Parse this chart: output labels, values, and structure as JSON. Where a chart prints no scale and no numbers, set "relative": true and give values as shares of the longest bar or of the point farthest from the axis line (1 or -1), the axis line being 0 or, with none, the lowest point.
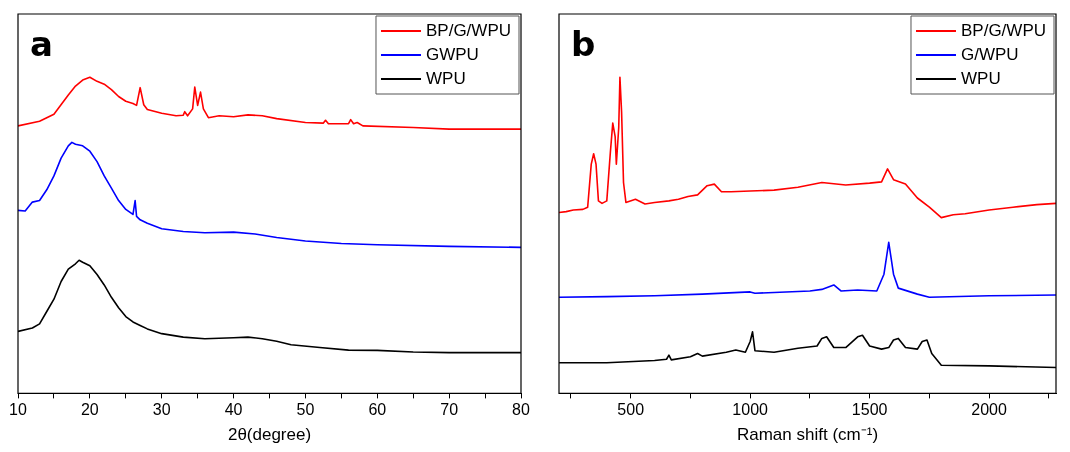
{
  "chart_data": [
    {
      "type": "line",
      "title": "a",
      "xlabel": "2θ(degree)",
      "relative": true,
      "legend": "top right",
      "grid": false,
      "marker": "none",
      "xlim": [
        10,
        80
      ],
      "xticks": [
        10,
        {
          "value": 15,
          "label": null
        },
        20,
        {
          "value": 25,
          "label": null
        },
        30,
        {
          "value": 35,
          "label": null
        },
        40,
        {
          "value": 45,
          "label": null
        },
        50,
        {
          "value": 55,
          "label": null
        },
        60,
        {
          "value": 65,
          "label": null
        },
        70,
        {
          "value": 75,
          "label": null
        },
        80
      ],
      "series": [
        {
          "name": "BP/G/WPU",
          "color": "#ff0000",
          "x": [
            10,
            13,
            15,
            17,
            18,
            19,
            20,
            21,
            22,
            23,
            24,
            25,
            26,
            26.5,
            27,
            27.5,
            28,
            30,
            32,
            33,
            33.2,
            33.6,
            34.3,
            34.6,
            35,
            35.4,
            35.8,
            36.5,
            38,
            40,
            42,
            44,
            46,
            50,
            52.5,
            52.8,
            53.2,
            56,
            56.3,
            56.7,
            57.2,
            58,
            65,
            70,
            80
          ],
          "values": [
            0.846,
            0.861,
            0.883,
            0.944,
            0.972,
            0.991,
            1,
            0.987,
            0.978,
            0.961,
            0.939,
            0.924,
            0.917,
            0.911,
            0.967,
            0.913,
            0.898,
            0.886,
            0.878,
            0.88,
            0.891,
            0.878,
            0.9,
            0.969,
            0.911,
            0.953,
            0.9,
            0.872,
            0.878,
            0.875,
            0.881,
            0.878,
            0.869,
            0.857,
            0.855,
            0.864,
            0.853,
            0.853,
            0.866,
            0.853,
            0.857,
            0.846,
            0.841,
            0.836,
            0.836
          ]
        },
        {
          "name": "GWPU",
          "color": "#0000ff",
          "x": [
            10,
            11,
            12,
            13,
            14,
            15,
            16,
            17,
            17.5,
            18,
            19,
            20,
            21,
            22,
            23,
            24,
            25,
            26,
            26.3,
            26.5,
            27,
            28,
            30,
            33,
            36,
            40,
            43,
            46,
            50,
            55,
            60,
            70,
            80
          ],
          "values": [
            0.579,
            0.577,
            0.605,
            0.61,
            0.644,
            0.688,
            0.744,
            0.783,
            0.794,
            0.788,
            0.783,
            0.766,
            0.733,
            0.688,
            0.649,
            0.61,
            0.582,
            0.566,
            0.61,
            0.56,
            0.549,
            0.538,
            0.521,
            0.512,
            0.508,
            0.51,
            0.504,
            0.493,
            0.482,
            0.474,
            0.47,
            0.465,
            0.462
          ]
        },
        {
          "name": "WPU",
          "color": "#000000",
          "x": [
            10,
            12,
            13,
            14,
            15,
            16,
            17,
            18,
            18.5,
            19,
            20,
            21,
            22,
            23,
            24,
            25,
            26,
            27,
            28,
            30,
            33,
            36,
            40,
            42,
            44,
            46,
            48,
            52,
            56,
            60,
            65,
            70,
            80
          ],
          "values": [
            0.196,
            0.207,
            0.22,
            0.259,
            0.298,
            0.354,
            0.393,
            0.41,
            0.421,
            0.415,
            0.404,
            0.376,
            0.343,
            0.304,
            0.271,
            0.243,
            0.226,
            0.215,
            0.204,
            0.189,
            0.178,
            0.173,
            0.176,
            0.178,
            0.173,
            0.165,
            0.154,
            0.145,
            0.137,
            0.136,
            0.131,
            0.129,
            0.129
          ]
        }
      ]
    },
    {
      "type": "line",
      "title": "b",
      "xlabel": "Raman shift (cm⁻¹)",
      "relative": true,
      "legend": "top right",
      "grid": false,
      "marker": "none",
      "xlim": [
        200,
        2280
      ],
      "xticks": [
        {
          "value": 250,
          "label": null
        },
        500,
        {
          "value": 750,
          "label": null
        },
        1000,
        {
          "value": 1250,
          "label": null
        },
        1500,
        {
          "value": 1750,
          "label": null
        },
        2000,
        {
          "value": 2250,
          "label": null
        }
      ],
      "series": [
        {
          "name": "BP/G/WPU",
          "color": "#ff0000",
          "x": [
            200,
            230,
            260,
            300,
            320,
            335,
            345,
            355,
            365,
            380,
            400,
            415,
            425,
            435,
            440,
            450,
            455,
            462,
            470,
            480,
            520,
            560,
            600,
            660,
            700,
            740,
            780,
            820,
            850,
            880,
            920,
            1000,
            1100,
            1200,
            1300,
            1400,
            1500,
            1550,
            1575,
            1600,
            1650,
            1700,
            1750,
            1800,
            1850,
            1900,
            2000,
            2100,
            2200,
            2280
          ],
          "values": [
            0.572,
            0.575,
            0.58,
            0.582,
            0.589,
            0.725,
            0.758,
            0.725,
            0.609,
            0.601,
            0.609,
            0.763,
            0.855,
            0.812,
            0.725,
            0.841,
            1,
            0.889,
            0.667,
            0.604,
            0.614,
            0.599,
            0.604,
            0.609,
            0.614,
            0.623,
            0.628,
            0.657,
            0.662,
            0.638,
            0.638,
            0.64,
            0.643,
            0.652,
            0.667,
            0.659,
            0.665,
            0.669,
            0.71,
            0.676,
            0.662,
            0.618,
            0.589,
            0.556,
            0.565,
            0.568,
            0.58,
            0.589,
            0.597,
            0.601
          ]
        },
        {
          "name": "G/WPU",
          "color": "#0000ff",
          "x": [
            200,
            400,
            600,
            800,
            1000,
            1020,
            1100,
            1250,
            1300,
            1350,
            1380,
            1450,
            1530,
            1560,
            1580,
            1600,
            1620,
            1700,
            1750,
            2000,
            2280
          ],
          "values": [
            0.304,
            0.306,
            0.309,
            0.314,
            0.321,
            0.317,
            0.319,
            0.324,
            0.329,
            0.343,
            0.324,
            0.327,
            0.324,
            0.377,
            0.478,
            0.377,
            0.333,
            0.314,
            0.304,
            0.309,
            0.311
          ]
        },
        {
          "name": "WPU",
          "color": "#000000",
          "x": [
            200,
            400,
            600,
            650,
            660,
            670,
            750,
            780,
            800,
            900,
            940,
            980,
            1000,
            1010,
            1020,
            1100,
            1200,
            1280,
            1300,
            1320,
            1350,
            1400,
            1450,
            1470,
            1500,
            1550,
            1580,
            1600,
            1620,
            1650,
            1700,
            1720,
            1740,
            1760,
            1800,
            2000,
            2280
          ],
          "values": [
            0.097,
            0.097,
            0.104,
            0.108,
            0.121,
            0.106,
            0.116,
            0.126,
            0.118,
            0.13,
            0.137,
            0.13,
            0.164,
            0.195,
            0.135,
            0.13,
            0.143,
            0.15,
            0.174,
            0.179,
            0.145,
            0.145,
            0.179,
            0.184,
            0.15,
            0.14,
            0.145,
            0.169,
            0.174,
            0.145,
            0.14,
            0.164,
            0.169,
            0.126,
            0.089,
            0.087,
            0.082
          ]
        }
      ]
    }
  ]
}
